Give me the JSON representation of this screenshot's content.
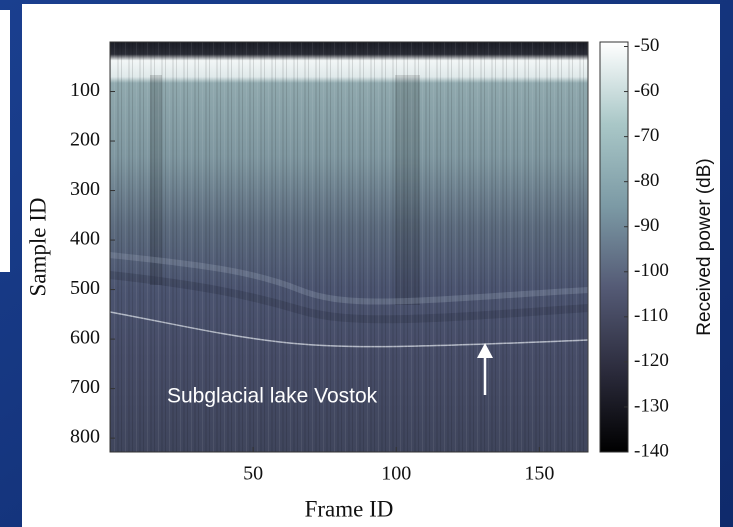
{
  "chart_data": {
    "type": "heatmap",
    "x_label": "Frame ID",
    "y_label": "Sample ID",
    "colorbar_label": "Received power (dB)",
    "annotation": "Subglacial lake Vostok",
    "xlim": [
      0,
      167
    ],
    "xticks": [
      50,
      100,
      150
    ],
    "ylim": [
      0,
      828
    ],
    "yticks": [
      100,
      200,
      300,
      400,
      500,
      600,
      700,
      800
    ],
    "y_reversed": true,
    "clim": [
      -140,
      -49
    ],
    "cticks": [
      -50,
      -60,
      -70,
      -80,
      -90,
      -100,
      -110,
      -120,
      -130,
      -140
    ],
    "colormap": "bone"
  }
}
